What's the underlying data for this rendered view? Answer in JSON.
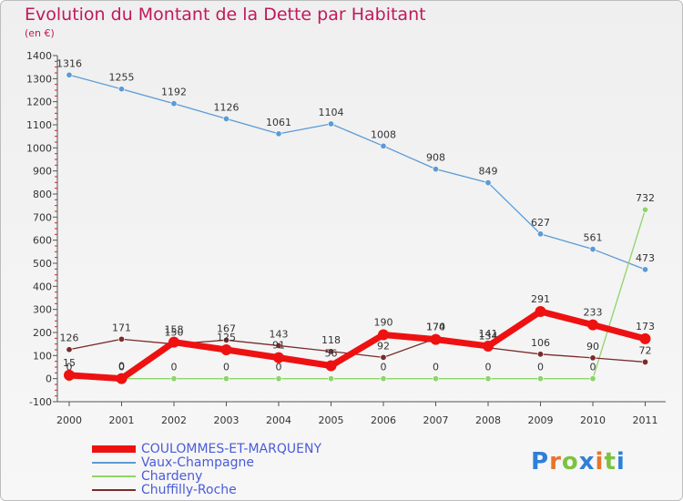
{
  "header": {
    "title": "Evolution du Montant de la Dette par Habitant",
    "unit": "(en €)"
  },
  "brand": {
    "text": "Proxiti",
    "colors": [
      "#2e7fd8",
      "#e8732a",
      "#7cc242",
      "#2e7fd8",
      "#e8732a",
      "#7cc242",
      "#2e7fd8"
    ]
  },
  "chart_data": {
    "type": "line",
    "title": "Evolution du Montant de la Dette par Habitant",
    "xlabel": "",
    "ylabel": "(en €)",
    "categories": [
      "2000",
      "2001",
      "2002",
      "2003",
      "2004",
      "2005",
      "2006",
      "2007",
      "2008",
      "2009",
      "2010",
      "2011"
    ],
    "ylim": [
      -100,
      1400
    ],
    "yticks": [
      -100,
      0,
      100,
      200,
      300,
      400,
      500,
      600,
      700,
      800,
      900,
      1000,
      1100,
      1200,
      1300,
      1400
    ],
    "grid": false,
    "legend_position": "bottom-left",
    "series": [
      {
        "name": "COULOMMES-ET-MARQUENY",
        "color": "#ee1111",
        "values": [
          15,
          0,
          158,
          125,
          91,
          56,
          190,
          170,
          141,
          291,
          233,
          173
        ],
        "labels": [
          "15",
          "0",
          "158",
          "125",
          "91",
          "56",
          "190",
          "170",
          "141",
          "291",
          "233",
          "173"
        ]
      },
      {
        "name": "Vaux-Champagne",
        "color": "#5b9bd5",
        "values": [
          1316,
          1255,
          1192,
          1126,
          1061,
          1104,
          1008,
          908,
          849,
          627,
          561,
          473
        ],
        "labels": [
          "1316",
          "1255",
          "1192",
          "1126",
          "1061",
          "1104",
          "1008",
          "908",
          "849",
          "627",
          "561",
          "473"
        ]
      },
      {
        "name": "Chardeny",
        "color": "#8ed46a",
        "values": [
          0,
          0,
          0,
          0,
          0,
          0,
          0,
          0,
          0,
          0,
          0,
          732
        ],
        "labels": [
          "0",
          "0",
          "0",
          "0",
          "0",
          "0",
          "0",
          "0",
          "0",
          "0",
          "0",
          "732"
        ]
      },
      {
        "name": "Chuffilly-Roche",
        "color": "#7a2b2b",
        "values": [
          126,
          171,
          150,
          167,
          143,
          118,
          92,
          174,
          134,
          106,
          90,
          72
        ],
        "labels": [
          "126",
          "171",
          "150",
          "167",
          "143",
          "118",
          "92",
          "174",
          "134",
          "106",
          "90",
          "72"
        ]
      }
    ]
  }
}
